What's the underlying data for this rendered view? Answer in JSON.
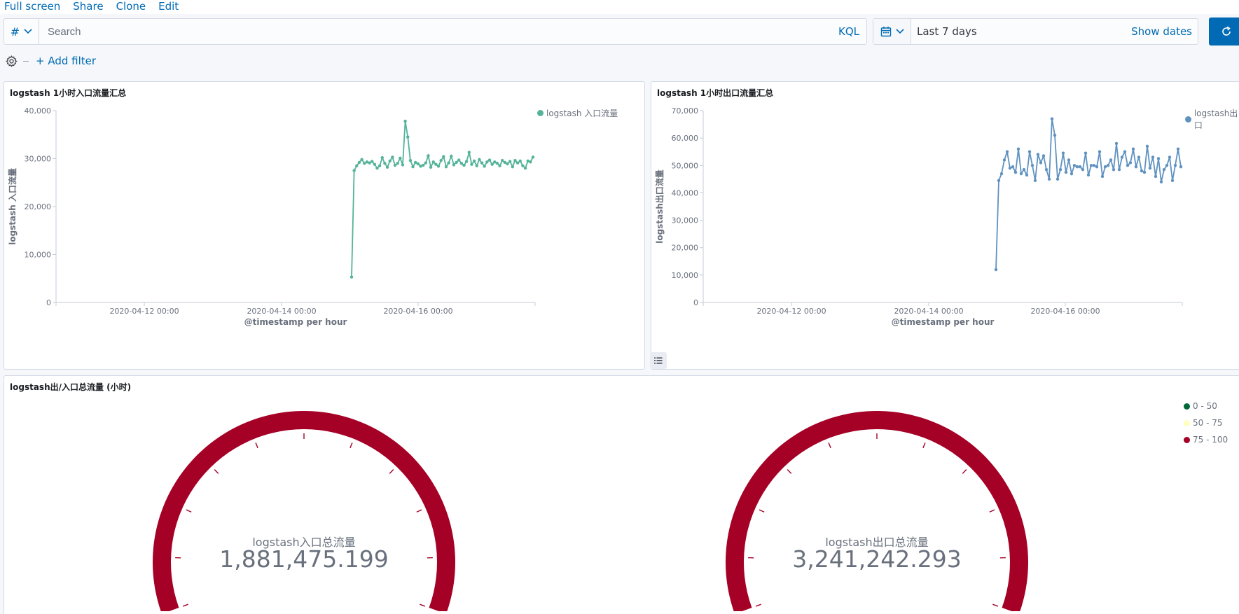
{
  "nav": {
    "full_screen": "Full screen",
    "share": "Share",
    "clone": "Clone",
    "edit": "Edit"
  },
  "query": {
    "type_symbol": "#",
    "placeholder": "Search",
    "language": "KQL"
  },
  "time": {
    "range": "Last 7 days",
    "show_dates": "Show dates"
  },
  "filters": {
    "add_filter": "+ Add filter"
  },
  "panels": {
    "inbound": {
      "title": "logstash 1小时入口流量汇总",
      "legend": "logstash 入口流量",
      "color": "#54b399"
    },
    "outbound": {
      "title": "logstash 1小时出口流量汇总",
      "legend": "logstash出口",
      "color": "#6092c0"
    },
    "totals": {
      "title": "logstash出/入口总流量 (小时)",
      "legend": [
        "0 - 50",
        "50 - 75",
        "75 - 100"
      ],
      "legend_colors": [
        "#006837",
        "#ffffbf",
        "#a50026"
      ],
      "gauge_in_label": "logstash入口总流量",
      "gauge_in_value": "1,881,475.199",
      "gauge_out_label": "logstash出口总流量",
      "gauge_out_value": "3,241,242.293",
      "gauge_color": "#a50026"
    }
  },
  "chart_data": [
    {
      "type": "line",
      "title": "logstash 1小时入口流量汇总",
      "xlabel": "@timestamp per hour",
      "ylabel": "logstash 入口流量",
      "x_ticks": [
        "2020-04-12 00:00",
        "2020-04-14 00:00",
        "2020-04-16 00:00"
      ],
      "y_ticks": [
        "0",
        "10,000",
        "20,000",
        "30,000",
        "40,000"
      ],
      "ylim": [
        0,
        40000
      ],
      "legend_position": "top-right",
      "series": [
        {
          "name": "logstash 入口流量",
          "values": [
            5300,
            27500,
            28500,
            29200,
            29800,
            29000,
            29300,
            29100,
            29400,
            28800,
            28000,
            28500,
            30200,
            29000,
            28200,
            29500,
            30300,
            28600,
            29000,
            30100,
            28700,
            37800,
            34500,
            29600,
            28300,
            29200,
            28900,
            28400,
            28600,
            29100,
            30600,
            28200,
            29300,
            28800,
            28400,
            29600,
            30400,
            28300,
            29100,
            30500,
            28700,
            29200,
            29700,
            29000,
            28600,
            29400,
            31300,
            28800,
            29500,
            28500,
            29800,
            29100,
            28400,
            29300,
            29700,
            28800,
            29300,
            29000,
            28500,
            29600,
            29200,
            28900,
            29400,
            28300,
            29600,
            29100,
            29500,
            28500,
            28000,
            29500,
            29300,
            30300
          ]
        }
      ]
    },
    {
      "type": "line",
      "title": "logstash 1小时出口流量汇总",
      "xlabel": "@timestamp per hour",
      "ylabel": "logstash出口流量",
      "x_ticks": [
        "2020-04-12 00:00",
        "2020-04-14 00:00",
        "2020-04-16 00:00"
      ],
      "y_ticks": [
        "0",
        "10,000",
        "20,000",
        "30,000",
        "40,000",
        "50,000",
        "60,000",
        "70,000"
      ],
      "ylim": [
        0,
        70000
      ],
      "legend_position": "top-right",
      "series": [
        {
          "name": "logstash出口",
          "values": [
            12000,
            44500,
            47000,
            52000,
            55000,
            49000,
            49500,
            47500,
            56000,
            47000,
            48500,
            46500,
            55000,
            50000,
            44500,
            54000,
            51000,
            53500,
            48500,
            45000,
            67000,
            61000,
            45000,
            48500,
            54500,
            47500,
            52000,
            47000,
            50000,
            49500,
            49500,
            48500,
            54500,
            46500,
            50000,
            50000,
            49500,
            55000,
            46000,
            49500,
            50000,
            52000,
            48500,
            58000,
            48500,
            53000,
            55000,
            50000,
            51000,
            56000,
            49500,
            53000,
            48000,
            47500,
            57000,
            49000,
            53000,
            46000,
            52500,
            44000,
            48500,
            50000,
            53000,
            44500,
            50000,
            56000,
            49500
          ]
        }
      ]
    },
    {
      "type": "gauge",
      "title": "logstash出/入口总流量 (小时)",
      "ranges": [
        "0 - 50",
        "50 - 75",
        "75 - 100"
      ],
      "series": [
        {
          "name": "logstash入口总流量",
          "value": 1881475.199
        },
        {
          "name": "logstash出口总流量",
          "value": 3241242.293
        }
      ]
    }
  ]
}
